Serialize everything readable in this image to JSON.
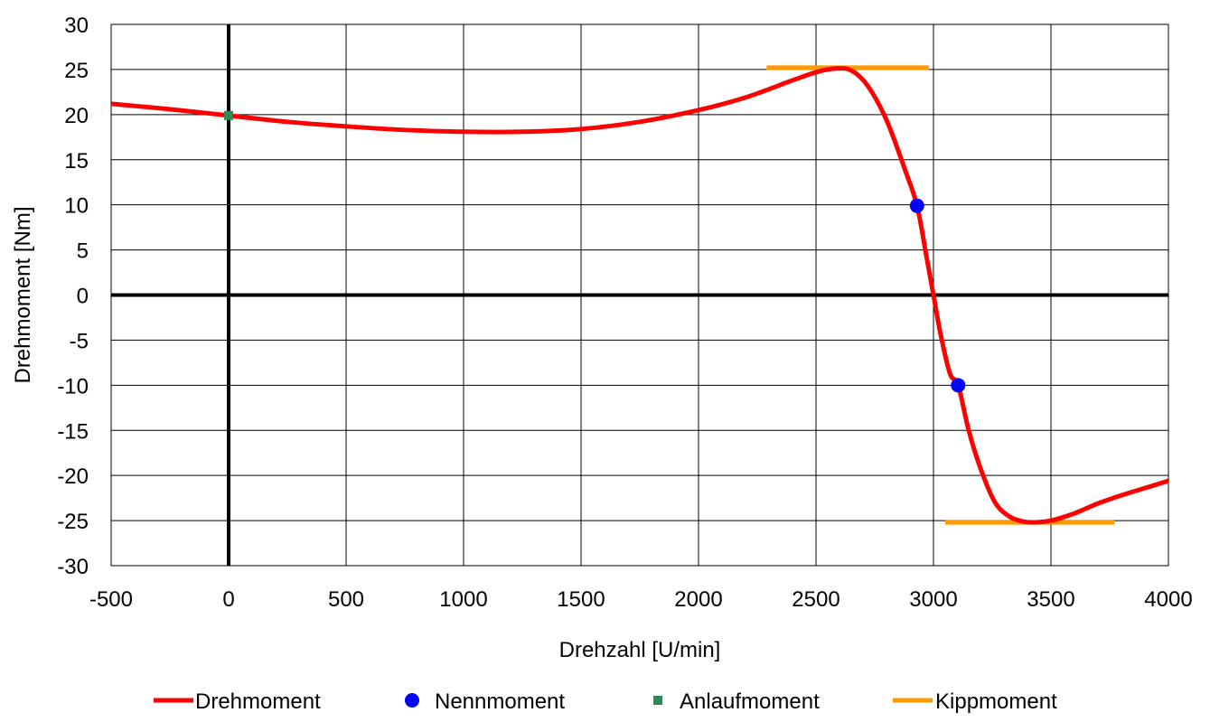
{
  "chart_data": {
    "type": "line",
    "title": "",
    "xlabel": "Drehzahl [U/min]",
    "ylabel": "Drehmoment  [Nm]",
    "xlim": [
      -500,
      4000
    ],
    "ylim": [
      -30,
      30
    ],
    "xticks": [
      -500,
      0,
      500,
      1000,
      1500,
      2000,
      2500,
      3000,
      3500,
      4000
    ],
    "yticks": [
      -30,
      -25,
      -20,
      -15,
      -10,
      -5,
      0,
      5,
      10,
      15,
      20,
      25,
      30
    ],
    "grid": true,
    "legend_position": "bottom",
    "series": [
      {
        "name": "Drehmoment",
        "kind": "line",
        "color": "#ff0000",
        "x": [
          -500,
          -250,
          0,
          250,
          500,
          750,
          1000,
          1250,
          1500,
          1750,
          2000,
          2200,
          2400,
          2500,
          2580,
          2650,
          2720,
          2800,
          2880,
          2930,
          2970,
          3000,
          3030,
          3070,
          3105,
          3150,
          3200,
          3260,
          3320,
          3380,
          3430,
          3500,
          3600,
          3700,
          3800,
          3900,
          4000
        ],
        "y": [
          21.2,
          20.6,
          19.9,
          19.2,
          18.7,
          18.3,
          18.1,
          18.1,
          18.4,
          19.2,
          20.5,
          21.9,
          23.8,
          24.7,
          25.1,
          24.9,
          23.2,
          19.4,
          13.8,
          9.9,
          4.3,
          0,
          -4.3,
          -8.7,
          -10,
          -15,
          -19.2,
          -22.9,
          -24.5,
          -25.1,
          -25.2,
          -25,
          -24.2,
          -23.1,
          -22.2,
          -21.4,
          -20.6
        ]
      },
      {
        "name": "Nennmoment",
        "kind": "marker-circle",
        "color": "#0000ff",
        "x": [
          2930,
          3105
        ],
        "y": [
          9.9,
          -10
        ]
      },
      {
        "name": "Anlaufmoment",
        "kind": "marker-square",
        "color": "#2e8b57",
        "x": [
          0
        ],
        "y": [
          19.9
        ]
      },
      {
        "name": "Kippmoment",
        "kind": "hline-segments",
        "color": "#ff9900",
        "segments": [
          {
            "x": [
              2290,
              2980
            ],
            "y": [
              25.2,
              25.2
            ]
          },
          {
            "x": [
              3050,
              3770
            ],
            "y": [
              -25.2,
              -25.2
            ]
          }
        ]
      }
    ]
  },
  "legend": {
    "items": [
      "Drehmoment",
      "Nennmoment",
      "Anlaufmoment",
      "Kippmoment"
    ]
  }
}
